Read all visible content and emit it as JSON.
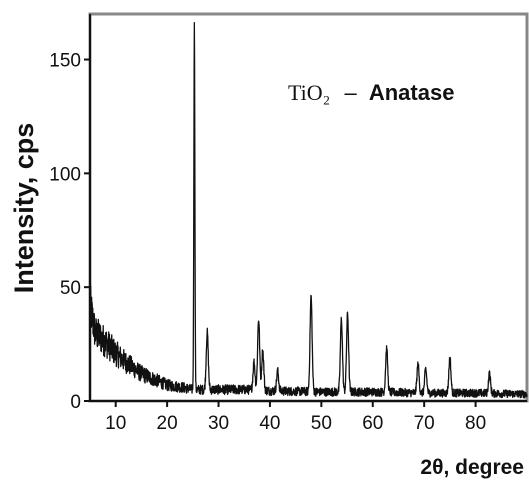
{
  "chart_data": {
    "type": "line",
    "title": "",
    "xlabel": "2θ, degree",
    "ylabel": "Intensity, cps",
    "annotation": {
      "formula": "TiO₂",
      "dash": "–",
      "phase": "Anatase"
    },
    "xlim": [
      5,
      90
    ],
    "ylim": [
      0,
      170
    ],
    "xticks": [
      10,
      20,
      30,
      40,
      50,
      60,
      70,
      80
    ],
    "yticks": [
      0,
      50,
      100,
      150
    ],
    "grid": false,
    "line_color": "#111111",
    "frame_color": "#888888",
    "series": [
      {
        "background": [
          [
            5,
            42
          ],
          [
            6,
            30
          ],
          [
            8,
            26
          ],
          [
            10,
            21
          ],
          [
            12,
            17
          ],
          [
            15,
            12
          ],
          [
            18,
            9
          ],
          [
            20,
            7
          ],
          [
            23,
            6
          ],
          [
            25,
            5
          ],
          [
            27,
            5
          ],
          [
            30,
            5
          ],
          [
            35,
            5
          ],
          [
            40,
            4.5
          ],
          [
            50,
            4
          ],
          [
            60,
            4
          ],
          [
            70,
            3.5
          ],
          [
            80,
            3.5
          ],
          [
            90,
            3
          ]
        ],
        "peaks": [
          {
            "x": 25.3,
            "y": 165
          },
          {
            "x": 27.8,
            "y": 30
          },
          {
            "x": 36.9,
            "y": 17
          },
          {
            "x": 37.8,
            "y": 36
          },
          {
            "x": 38.6,
            "y": 22
          },
          {
            "x": 41.5,
            "y": 13
          },
          {
            "x": 48.0,
            "y": 46
          },
          {
            "x": 53.9,
            "y": 36
          },
          {
            "x": 55.1,
            "y": 38
          },
          {
            "x": 62.7,
            "y": 23
          },
          {
            "x": 68.8,
            "y": 16
          },
          {
            "x": 70.3,
            "y": 14
          },
          {
            "x": 75.0,
            "y": 19
          },
          {
            "x": 82.7,
            "y": 12
          }
        ]
      }
    ]
  }
}
